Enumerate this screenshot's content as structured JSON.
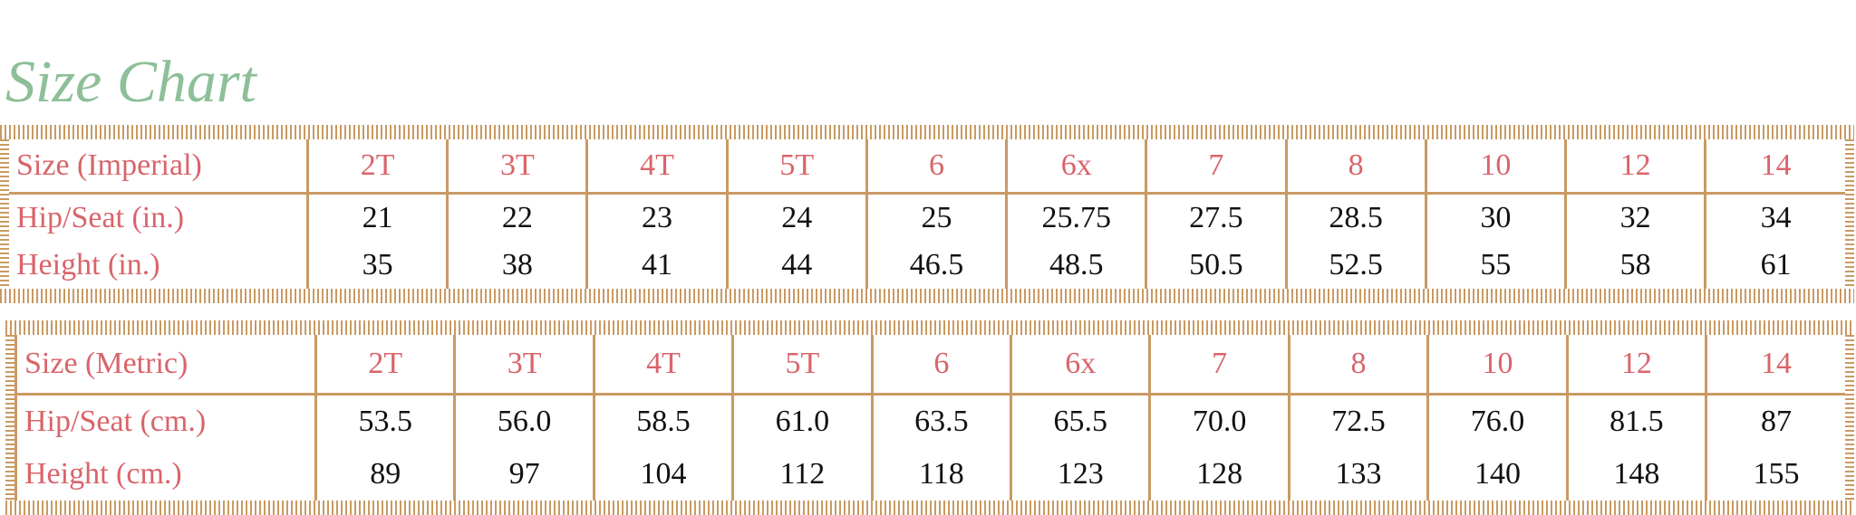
{
  "title": "Size Chart",
  "tables": [
    {
      "rows": [
        [
          "Size (Imperial)",
          "2T",
          "3T",
          "4T",
          "5T",
          "6",
          "6x",
          "7",
          "8",
          "10",
          "12",
          "14"
        ],
        [
          "Hip/Seat (in.)",
          "21",
          "22",
          "23",
          "24",
          "25",
          "25.75",
          "27.5",
          "28.5",
          "30",
          "32",
          "34"
        ],
        [
          "Height (in.)",
          "35",
          "38",
          "41",
          "44",
          "46.5",
          "48.5",
          "50.5",
          "52.5",
          "55",
          "58",
          "61"
        ]
      ]
    },
    {
      "rows": [
        [
          "Size (Metric)",
          "2T",
          "3T",
          "4T",
          "5T",
          "6",
          "6x",
          "7",
          "8",
          "10",
          "12",
          "14"
        ],
        [
          "Hip/Seat (cm.)",
          "53.5",
          "56.0",
          "58.5",
          "61.0",
          "63.5",
          "65.5",
          "70.0",
          "72.5",
          "76.0",
          "81.5",
          "87"
        ],
        [
          "Height (cm.)",
          "89",
          "97",
          "104",
          "112",
          "118",
          "123",
          "128",
          "133",
          "140",
          "148",
          "155"
        ]
      ]
    }
  ]
}
